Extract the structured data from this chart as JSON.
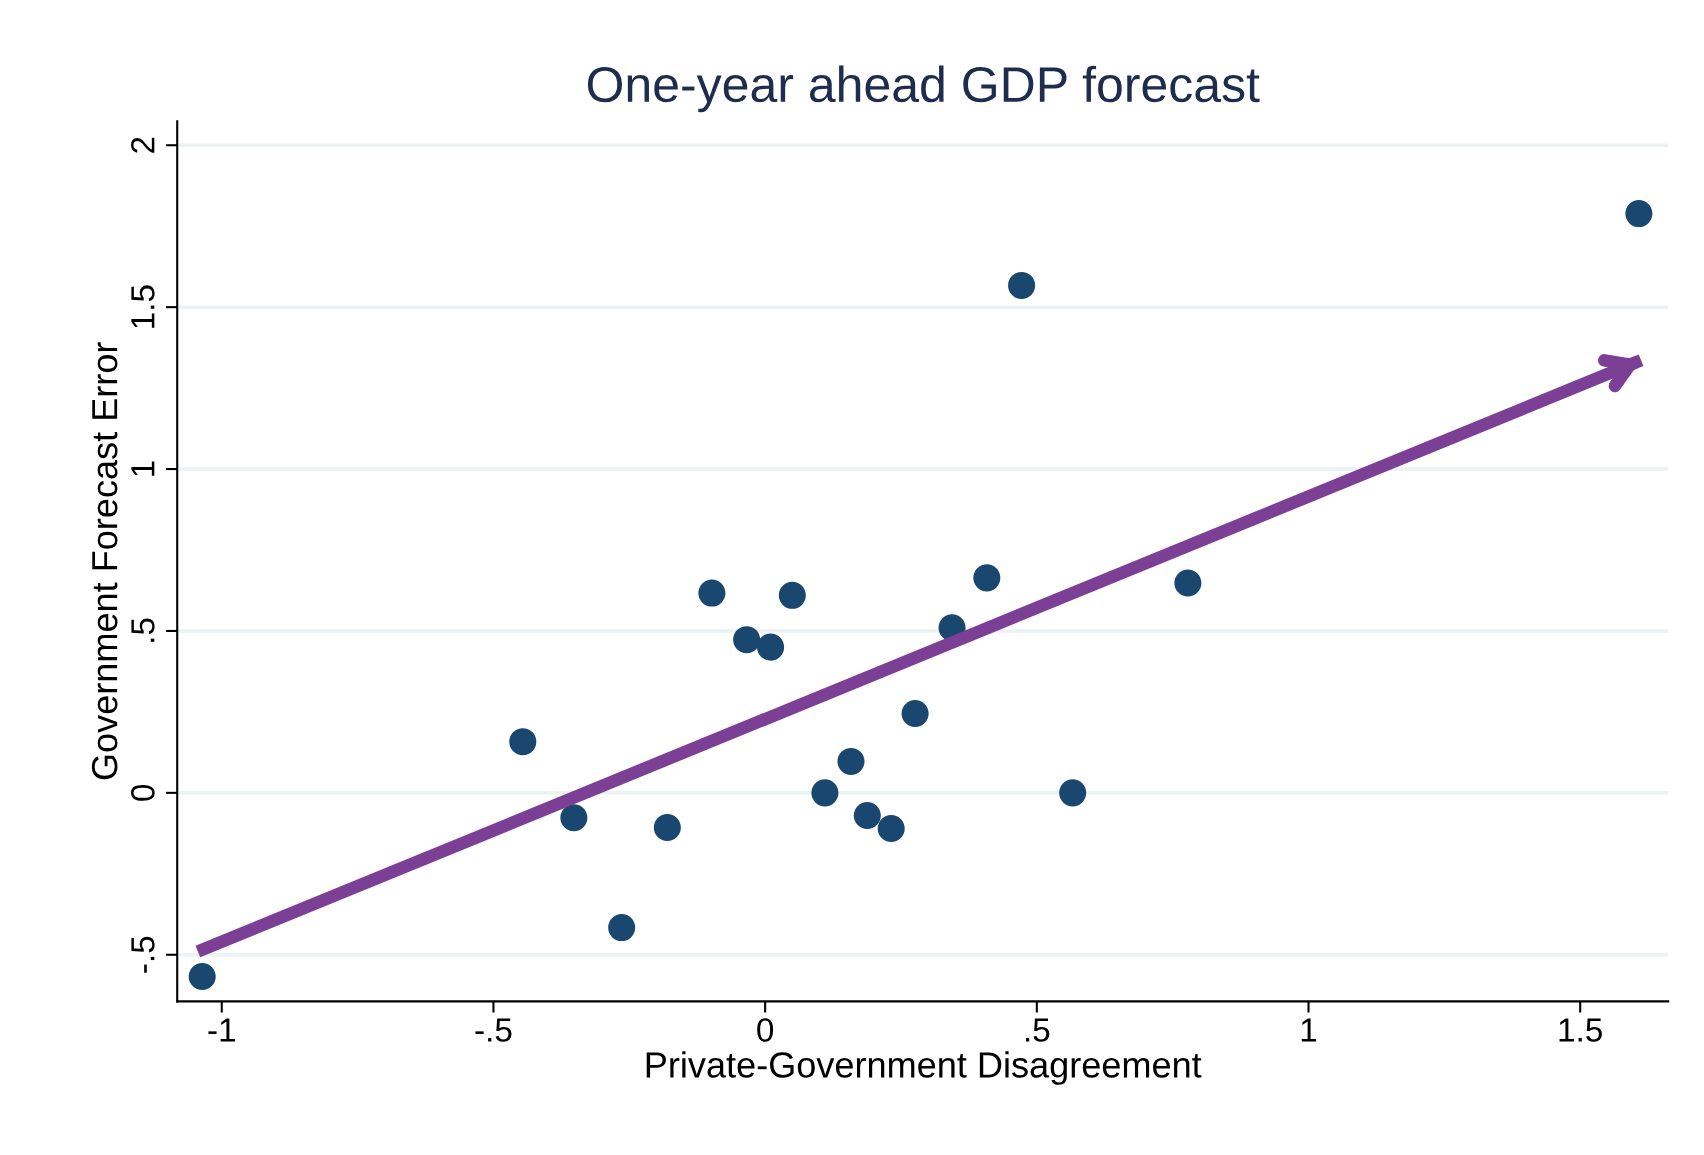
{
  "chart_data": {
    "type": "scatter",
    "title": "One-year ahead GDP forecast",
    "xlabel": "Private-Government Disagreement",
    "ylabel": "Government Forecast Error",
    "x": [
      -1.036,
      -0.446,
      -0.352,
      -0.264,
      -0.18,
      -0.098,
      -0.034,
      0.01,
      0.05,
      0.11,
      0.158,
      0.188,
      0.232,
      0.276,
      0.344,
      0.408,
      0.472,
      0.566,
      0.778,
      1.608
    ],
    "series": [
      {
        "color": "#1a476f",
        "marker": "circle",
        "values": [
          -0.567,
          0.158,
          -0.077,
          -0.416,
          -0.107,
          0.617,
          0.473,
          0.45,
          0.61,
          0.0,
          0.097,
          -0.07,
          -0.11,
          0.245,
          0.51,
          0.664,
          1.567,
          0.0,
          0.648,
          1.789
        ]
      },
      {
        "type": "line",
        "color": "#7b3f96",
        "x": [
          -1.044,
          1.612
        ],
        "values": [
          -0.49,
          1.336
        ]
      }
    ],
    "xlim": [
      -1.082,
      1.662
    ],
    "ylim": [
      -0.644,
      2.074
    ],
    "xticks": [
      {
        "value": -1,
        "label": "-1"
      },
      {
        "value": -0.5,
        "label": "-.5"
      },
      0,
      {
        "value": 0.5,
        "label": ".5"
      },
      1,
      {
        "value": 1.5,
        "label": "1.5"
      }
    ],
    "yticks": [
      {
        "value": -0.5,
        "label": "-.5"
      },
      0,
      {
        "value": 0.5,
        "label": ".5"
      },
      1,
      {
        "value": 1.5,
        "label": "1.5"
      },
      2
    ],
    "grid": "y",
    "legend": false
  }
}
